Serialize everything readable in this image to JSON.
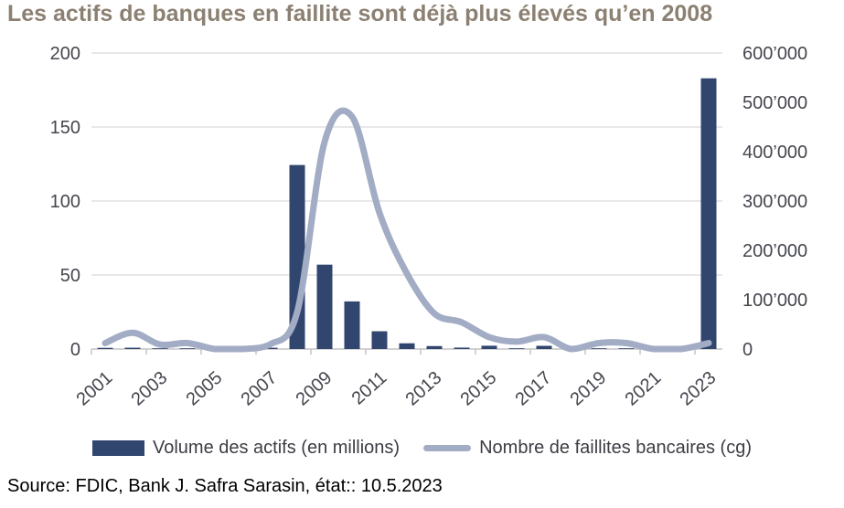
{
  "title": "Les actifs de banques en faillite sont déjà plus élevés qu’en 2008",
  "source": "Source: FDIC, Bank J. Safra Sarasin, état:: 10.5.2023",
  "colors": {
    "title": "#8b8072",
    "bar_series": "#31466e",
    "line_series": "#a2acc4",
    "gridline": "#d9d9d9",
    "axis_line": "#c3c3c3",
    "tick_label": "#45464e",
    "legend_text": "#3c3d44",
    "source_text": "#000000"
  },
  "chart_data": {
    "type": "bar",
    "subtype": "combo-bar-line-dual-axis",
    "title": "Les actifs de banques en faillite sont déjà plus élevés qu’en 2008",
    "categories": [
      "2001",
      "2002",
      "2003",
      "2004",
      "2005",
      "2006",
      "2007",
      "2008",
      "2009",
      "2010",
      "2011",
      "2012",
      "2013",
      "2014",
      "2015",
      "2016",
      "2017",
      "2018",
      "2019",
      "2020",
      "2021",
      "2022",
      "2023"
    ],
    "x_tick_labels": [
      "2001",
      "2003",
      "2005",
      "2007",
      "2009",
      "2011",
      "2013",
      "2015",
      "2017",
      "2019",
      "2021",
      "2023"
    ],
    "series": [
      {
        "name": "Volume des actifs (en millions)",
        "type": "bar",
        "axis": "right",
        "color": "#31466e",
        "values": [
          2400,
          2700,
          1000,
          200,
          0,
          0,
          2600,
          373000,
          171000,
          96500,
          36000,
          11600,
          6000,
          2900,
          6700,
          300,
          6500,
          0,
          200,
          500,
          0,
          0,
          548700
        ]
      },
      {
        "name": "Nombre de faillites bancaires (cg)",
        "type": "line",
        "axis": "left",
        "color": "#a2acc4",
        "values": [
          4,
          11,
          3,
          4,
          0,
          0,
          3,
          25,
          140,
          157,
          92,
          51,
          24,
          18,
          8,
          5,
          8,
          0,
          4,
          4,
          0,
          0,
          4
        ]
      }
    ],
    "axes": {
      "left": {
        "min": 0,
        "max": 200,
        "ticks": [
          0,
          50,
          100,
          150,
          200
        ],
        "tick_labels": [
          "0",
          "50",
          "100",
          "150",
          "200"
        ]
      },
      "right": {
        "min": 0,
        "max": 600000,
        "ticks": [
          0,
          100000,
          200000,
          300000,
          400000,
          500000,
          600000
        ],
        "tick_labels": [
          "0",
          "100’000",
          "200’000",
          "300’000",
          "400’000",
          "500’000",
          "600’000"
        ]
      }
    },
    "grid": "horizontal-left-ticks",
    "legend_position": "bottom"
  },
  "legend": {
    "bar_label": "Volume des actifs (en millions)",
    "line_label": "Nombre de faillites bancaires (cg)"
  }
}
